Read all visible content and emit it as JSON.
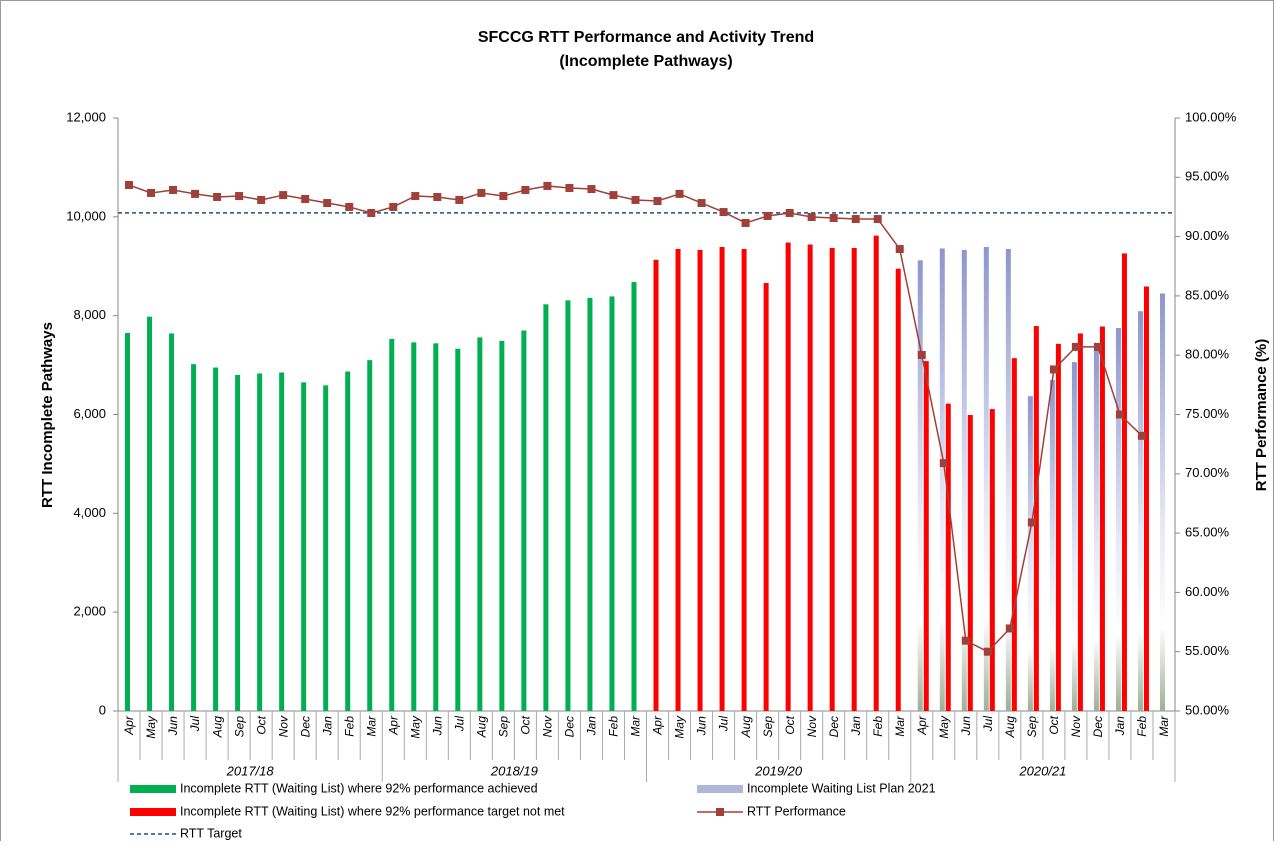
{
  "chart_data": {
    "type": "bar",
    "title": "SFCCG RTT Performance and Activity Trend",
    "subtitle": "(Incomplete Pathways)",
    "y_label": "RTT Incomplete Pathways",
    "y2_label": "RTT Performance (%)",
    "categories": [
      "Apr",
      "May",
      "Jun",
      "Jul",
      "Aug",
      "Sep",
      "Oct",
      "Nov",
      "Dec",
      "Jan",
      "Feb",
      "Mar",
      "Apr",
      "May",
      "Jun",
      "Jul",
      "Aug",
      "Sep",
      "Oct",
      "Nov",
      "Dec",
      "Jan",
      "Feb",
      "Mar",
      "Apr",
      "May",
      "Jun",
      "Jul",
      "Aug",
      "Sep",
      "Oct",
      "Nov",
      "Dec",
      "Jan",
      "Feb",
      "Mar",
      "Apr",
      "May",
      "Jun",
      "Jul",
      "Aug",
      "Sep",
      "Oct",
      "Nov",
      "Dec",
      "Jan",
      "Feb",
      "Mar"
    ],
    "group_labels": [
      "2017/18",
      "2018/19",
      "2019/20",
      "2020/21"
    ],
    "ylim": [
      0,
      12000
    ],
    "yticks": [
      0,
      {
        "value": 2000,
        "label": "2,000"
      },
      {
        "value": 4000,
        "label": "4,000"
      },
      {
        "value": 6000,
        "label": "6,000"
      },
      {
        "value": 8000,
        "label": "8,000"
      },
      {
        "value": 10000,
        "label": "10,000"
      },
      {
        "value": 12000,
        "label": "12,000"
      }
    ],
    "y2lim": [
      50,
      100
    ],
    "y2ticks": [
      {
        "value": 50,
        "label": "50.00%"
      },
      {
        "value": 55,
        "label": "55.00%"
      },
      {
        "value": 60,
        "label": "60.00%"
      },
      {
        "value": 65,
        "label": "65.00%"
      },
      {
        "value": 70,
        "label": "70.00%"
      },
      {
        "value": 75,
        "label": "75.00%"
      },
      {
        "value": 80,
        "label": "80.00%"
      },
      {
        "value": 85,
        "label": "85.00%"
      },
      {
        "value": 90,
        "label": "90.00%"
      },
      {
        "value": 95,
        "label": "95.00%"
      },
      {
        "value": 100,
        "label": "100.00%"
      }
    ],
    "legend": "bottom",
    "series": [
      {
        "name": "Incomplete RTT (Waiting List) where 92% performance achieved",
        "kind": "bar",
        "color": "#00b050",
        "values": [
          7650,
          7980,
          7640,
          7020,
          6950,
          6800,
          6830,
          6850,
          6650,
          6590,
          6870,
          7100,
          7530,
          7460,
          7440,
          7330,
          7560,
          7490,
          7700,
          8230,
          8310,
          8360,
          8390,
          8680,
          null,
          null,
          null,
          null,
          null,
          null,
          null,
          null,
          null,
          null,
          null,
          null,
          null,
          null,
          null,
          null,
          null,
          null,
          null,
          null,
          null,
          null,
          null,
          null
        ]
      },
      {
        "name": "Incomplete Waiting List Plan 2021",
        "kind": "plan",
        "color": "#8e96cc",
        "values": [
          null,
          null,
          null,
          null,
          null,
          null,
          null,
          null,
          null,
          null,
          null,
          null,
          null,
          null,
          null,
          null,
          null,
          null,
          null,
          null,
          null,
          null,
          null,
          null,
          null,
          null,
          null,
          null,
          null,
          null,
          null,
          null,
          null,
          null,
          null,
          null,
          9120,
          9360,
          9330,
          9390,
          9350,
          6370,
          6700,
          7060,
          7430,
          7750,
          8090,
          8450
        ]
      },
      {
        "name": "Incomplete RTT (Waiting List) where 92% performance target not met",
        "kind": "bar",
        "color": "#ff0000",
        "values": [
          null,
          null,
          null,
          null,
          null,
          null,
          null,
          null,
          null,
          null,
          null,
          null,
          null,
          null,
          null,
          null,
          null,
          null,
          null,
          null,
          null,
          null,
          null,
          null,
          9130,
          9350,
          9330,
          9390,
          9350,
          8660,
          9480,
          9440,
          9370,
          9370,
          9620,
          8950,
          7080,
          6220,
          5990,
          6110,
          7140,
          7790,
          7430,
          7640,
          7780,
          9260,
          8590,
          null
        ]
      },
      {
        "name": "RTT Performance",
        "kind": "line",
        "axis": "y2",
        "color": "#a0403a",
        "values": [
          94.35,
          93.68,
          93.93,
          93.6,
          93.34,
          93.42,
          93.09,
          93.5,
          93.17,
          92.83,
          92.5,
          91.99,
          92.5,
          93.42,
          93.34,
          93.09,
          93.68,
          93.42,
          93.93,
          94.27,
          94.1,
          94.01,
          93.5,
          93.09,
          93.0,
          93.6,
          92.83,
          92.07,
          91.15,
          91.74,
          91.99,
          91.65,
          91.57,
          91.48,
          91.48,
          88.95,
          80.02,
          70.9,
          55.93,
          55.0,
          56.96,
          65.9,
          78.8,
          80.7,
          80.7,
          75.0,
          73.2,
          null
        ]
      },
      {
        "name": "RTT Target",
        "kind": "target",
        "axis": "y2",
        "color": "#1f4e79",
        "value": 92
      }
    ]
  }
}
